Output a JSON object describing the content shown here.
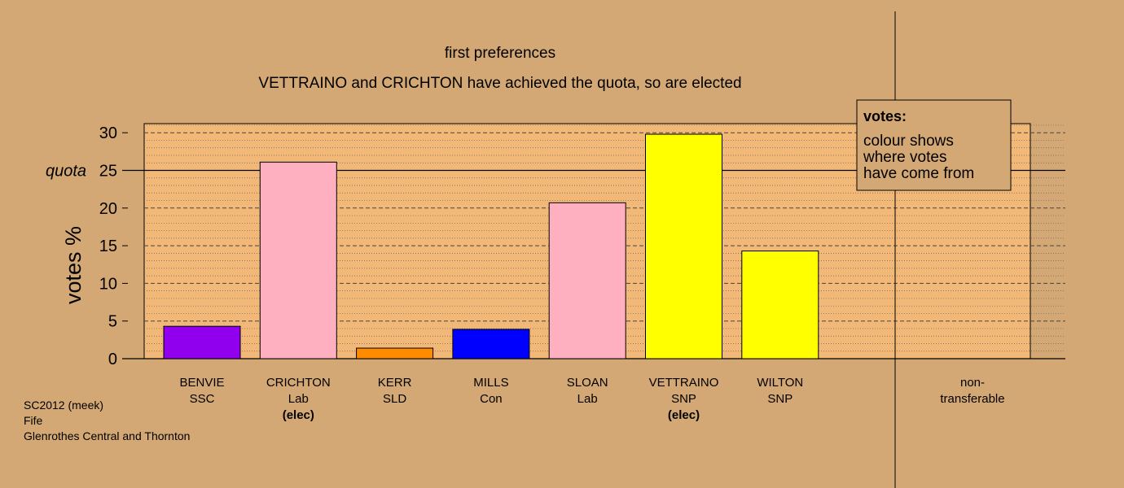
{
  "chart_data": {
    "type": "bar",
    "title": "first preferences",
    "subtitle": "VETTRAINO and CRICHTON have achieved the quota, so are elected",
    "ylabel": "votes %",
    "quota_label": "quota",
    "quota": 25,
    "ylim": [
      0,
      31.3
    ],
    "yticks": [
      0,
      5,
      10,
      15,
      20,
      25,
      30
    ],
    "grid": true,
    "categories": [
      {
        "name": "BENVIE",
        "party": "SSC",
        "status": "",
        "value": 4.3,
        "color": "#9000ee"
      },
      {
        "name": "CRICHTON",
        "party": "Lab",
        "status": "(elec)",
        "value": 26.1,
        "color": "#ffb0c0"
      },
      {
        "name": "KERR",
        "party": "SLD",
        "status": "",
        "value": 1.4,
        "color": "#ff8c00"
      },
      {
        "name": "MILLS",
        "party": "Con",
        "status": "",
        "value": 3.9,
        "color": "#0000ff"
      },
      {
        "name": "SLOAN",
        "party": "Lab",
        "status": "",
        "value": 20.7,
        "color": "#ffb0c0"
      },
      {
        "name": "VETTRAINO",
        "party": "SNP",
        "status": "(elec)",
        "value": 29.8,
        "color": "#ffff00"
      },
      {
        "name": "WILTON",
        "party": "SNP",
        "status": "",
        "value": 14.3,
        "color": "#ffff00"
      }
    ],
    "nontransferable": {
      "label_line1": "non-",
      "label_line2": "transferable",
      "value": 0
    },
    "legend": {
      "title": "votes:",
      "lines": [
        "colour shows",
        "where votes",
        "have come from"
      ],
      "placement": "top-right"
    }
  },
  "footer": {
    "line1": "SC2012 (meek)",
    "line2": "Fife",
    "line3": "Glenrothes Central and Thornton"
  },
  "colors": {
    "background": "#d4a874",
    "plot_background": "#f2b877"
  }
}
